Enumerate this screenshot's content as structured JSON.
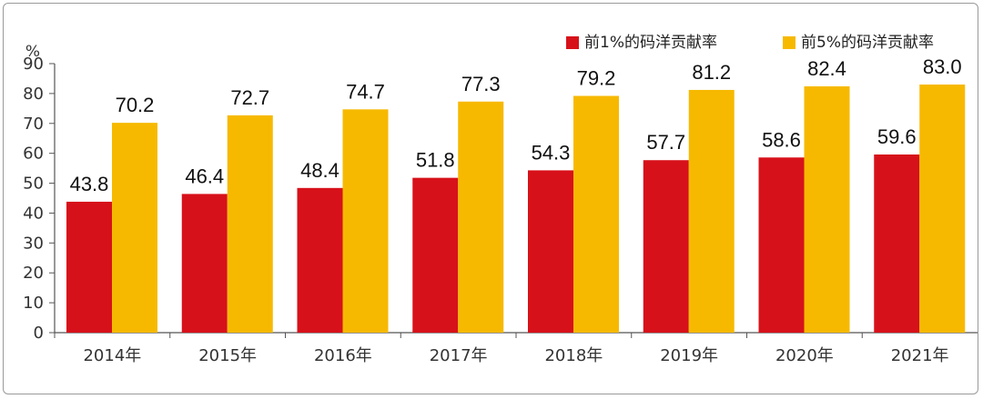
{
  "chart_data": {
    "type": "bar",
    "ylabel": "%",
    "ylim": [
      0,
      90
    ],
    "yticks": [
      0,
      10,
      20,
      30,
      40,
      50,
      60,
      70,
      80,
      90
    ],
    "categories": [
      "2014年",
      "2015年",
      "2016年",
      "2017年",
      "2018年",
      "2019年",
      "2020年",
      "2021年"
    ],
    "series": [
      {
        "name": "前1%的码洋贡献率",
        "color": "#d7111a",
        "values": [
          43.8,
          46.4,
          48.4,
          51.8,
          54.3,
          57.7,
          58.6,
          59.6
        ]
      },
      {
        "name": "前5%的码洋贡献率",
        "color": "#f7b900",
        "values": [
          70.2,
          72.7,
          74.7,
          77.3,
          79.2,
          81.2,
          82.4,
          83.0
        ]
      }
    ],
    "legend_position": "top-right",
    "grid": false,
    "data_labels": true
  }
}
